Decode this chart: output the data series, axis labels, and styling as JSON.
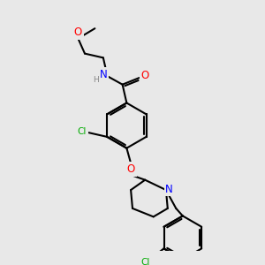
{
  "bg_color": "#e8e8e8",
  "atom_colors": {
    "C": "#000000",
    "N": "#0000ff",
    "O": "#ff0000",
    "Cl": "#00aa00",
    "H": "#888888"
  },
  "bond_color": "#000000",
  "bond_width": 1.5,
  "font_size": 7.5,
  "font_size_small": 6.5
}
